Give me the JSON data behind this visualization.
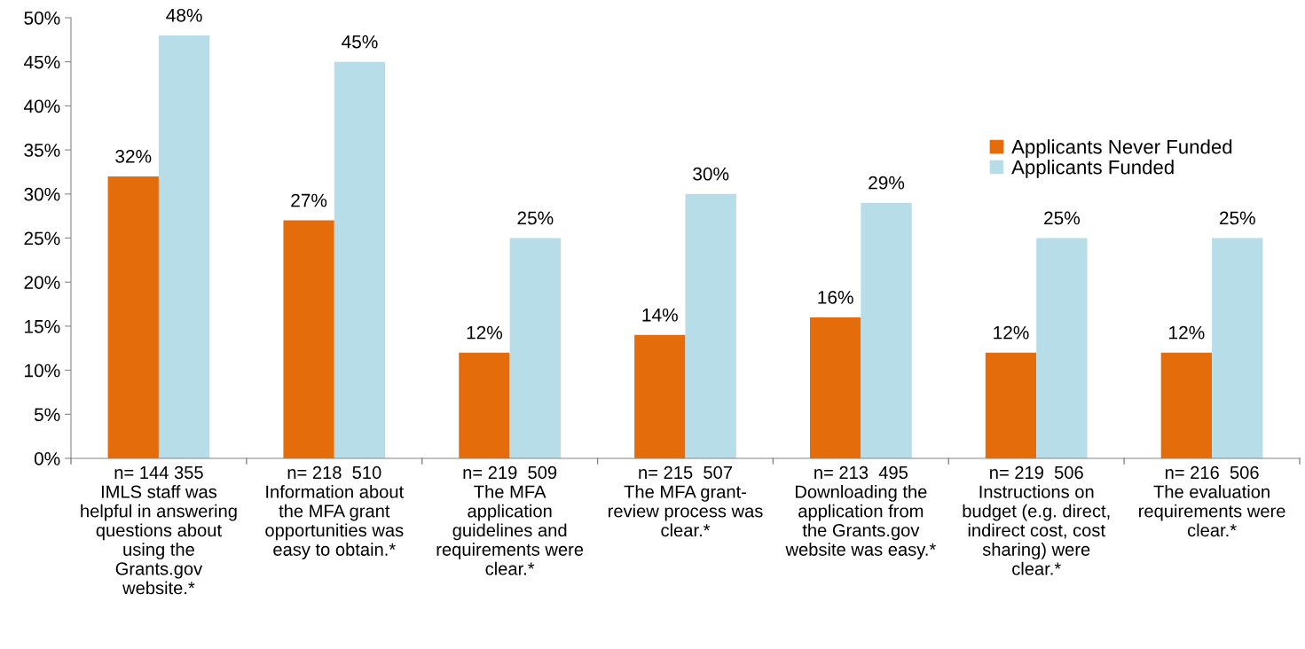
{
  "chart_data": {
    "type": "bar",
    "categories": [
      "n= 144 355\nIMLS staff was\nhelpful in answering\nquestions about\nusing the\nGrants.gov\nwebsite.*",
      "n= 218  510\nInformation about\nthe MFA grant\nopportunities was\neasy to obtain.*",
      "n= 219  509\nThe MFA\napplication\nguidelines and\nrequirements were\nclear.*",
      "n= 215  507\nThe MFA grant-\nreview process was\nclear.*",
      "n= 213  495\nDownloading the\napplication from\nthe Grants.gov\nwebsite was easy.*",
      "n= 219  506\nInstructions on\nbudget (e.g. direct,\nindirect cost, cost\nsharing) were\nclear.*",
      "n= 216  506\nThe evaluation\nrequirements were\nclear.*"
    ],
    "series": [
      {
        "name": "Applicants Never Funded",
        "color": "#e46c0a",
        "values": [
          32,
          27,
          12,
          14,
          16,
          12,
          12
        ],
        "value_labels": [
          "32%",
          "27%",
          "12%",
          "14%",
          "16%",
          "12%",
          "12%"
        ]
      },
      {
        "name": "Applicants Funded",
        "color": "#b7dee8",
        "values": [
          48,
          45,
          25,
          30,
          29,
          25,
          25
        ],
        "value_labels": [
          "48%",
          "45%",
          "25%",
          "30%",
          "29%",
          "25%",
          "25%"
        ]
      }
    ],
    "ylim": [
      0,
      50
    ],
    "yticks": [
      {
        "value": 0,
        "label": "0%"
      },
      {
        "value": 5,
        "label": "5%"
      },
      {
        "value": 10,
        "label": "10%"
      },
      {
        "value": 15,
        "label": "15%"
      },
      {
        "value": 20,
        "label": "20%"
      },
      {
        "value": 25,
        "label": "25%"
      },
      {
        "value": 30,
        "label": "30%"
      },
      {
        "value": 35,
        "label": "35%"
      },
      {
        "value": 40,
        "label": "40%"
      },
      {
        "value": 45,
        "label": "45%"
      },
      {
        "value": 50,
        "label": "50%"
      }
    ],
    "grid": false,
    "legend": "right"
  }
}
